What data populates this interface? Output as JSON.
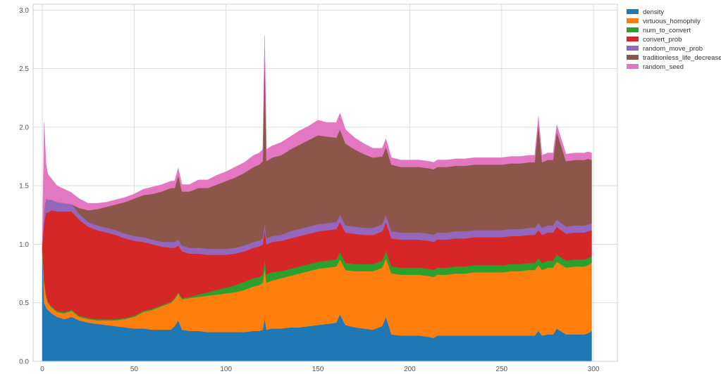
{
  "chart_data": {
    "type": "area",
    "stacked": true,
    "title": "",
    "xlabel": "",
    "ylabel": "",
    "xlim": [
      -5,
      313
    ],
    "ylim": [
      0,
      3.05
    ],
    "xticks": [
      0,
      50,
      100,
      150,
      200,
      250,
      300
    ],
    "yticks": [
      0.0,
      0.5,
      1.0,
      1.5,
      2.0,
      2.5,
      3.0
    ],
    "grid": true,
    "legend_position": "outside-top-right",
    "x": [
      0,
      1,
      2,
      3,
      5,
      8,
      12,
      16,
      20,
      25,
      30,
      35,
      40,
      45,
      50,
      55,
      60,
      65,
      70,
      72,
      74,
      76,
      80,
      85,
      90,
      95,
      100,
      105,
      110,
      115,
      118,
      120,
      121,
      122,
      125,
      130,
      135,
      140,
      145,
      150,
      155,
      160,
      162,
      165,
      170,
      175,
      180,
      185,
      187,
      190,
      195,
      200,
      205,
      210,
      213,
      215,
      220,
      225,
      230,
      235,
      240,
      245,
      250,
      255,
      260,
      265,
      268,
      270,
      272,
      275,
      278,
      280,
      285,
      290,
      295,
      297,
      299
    ],
    "series": [
      {
        "name": "density",
        "color": "#1f77b4",
        "values": [
          0.95,
          0.5,
          0.46,
          0.44,
          0.41,
          0.38,
          0.36,
          0.38,
          0.35,
          0.33,
          0.32,
          0.31,
          0.3,
          0.29,
          0.28,
          0.28,
          0.27,
          0.27,
          0.27,
          0.3,
          0.35,
          0.27,
          0.26,
          0.26,
          0.25,
          0.25,
          0.25,
          0.25,
          0.25,
          0.26,
          0.26,
          0.27,
          0.37,
          0.27,
          0.28,
          0.28,
          0.29,
          0.29,
          0.3,
          0.31,
          0.32,
          0.33,
          0.4,
          0.31,
          0.29,
          0.28,
          0.27,
          0.3,
          0.38,
          0.23,
          0.22,
          0.22,
          0.22,
          0.21,
          0.2,
          0.22,
          0.22,
          0.22,
          0.22,
          0.22,
          0.22,
          0.22,
          0.22,
          0.22,
          0.22,
          0.22,
          0.22,
          0.26,
          0.22,
          0.23,
          0.23,
          0.28,
          0.23,
          0.23,
          0.23,
          0.24,
          0.26
        ]
      },
      {
        "name": "virtuous_homophily",
        "color": "#ff7f0e",
        "values": [
          0.02,
          0.18,
          0.1,
          0.06,
          0.05,
          0.04,
          0.05,
          0.05,
          0.03,
          0.03,
          0.03,
          0.04,
          0.05,
          0.07,
          0.1,
          0.14,
          0.17,
          0.2,
          0.23,
          0.23,
          0.23,
          0.26,
          0.28,
          0.29,
          0.31,
          0.32,
          0.33,
          0.34,
          0.36,
          0.38,
          0.39,
          0.4,
          0.42,
          0.4,
          0.41,
          0.43,
          0.44,
          0.46,
          0.47,
          0.48,
          0.48,
          0.48,
          0.47,
          0.47,
          0.48,
          0.49,
          0.5,
          0.5,
          0.5,
          0.52,
          0.52,
          0.52,
          0.52,
          0.52,
          0.52,
          0.52,
          0.52,
          0.53,
          0.53,
          0.54,
          0.54,
          0.54,
          0.54,
          0.55,
          0.55,
          0.56,
          0.56,
          0.56,
          0.56,
          0.57,
          0.57,
          0.57,
          0.57,
          0.58,
          0.58,
          0.58,
          0.58
        ]
      },
      {
        "name": "num_to_convert",
        "color": "#2ca02c",
        "values": [
          0.005,
          0.01,
          0.01,
          0.01,
          0.01,
          0.01,
          0.01,
          0.01,
          0.01,
          0.01,
          0.01,
          0.01,
          0.01,
          0.01,
          0.01,
          0.01,
          0.01,
          0.01,
          0.01,
          0.01,
          0.01,
          0.01,
          0.01,
          0.02,
          0.03,
          0.04,
          0.05,
          0.06,
          0.07,
          0.07,
          0.07,
          0.07,
          0.08,
          0.07,
          0.07,
          0.06,
          0.06,
          0.06,
          0.06,
          0.06,
          0.06,
          0.06,
          0.06,
          0.06,
          0.06,
          0.06,
          0.06,
          0.06,
          0.06,
          0.06,
          0.06,
          0.06,
          0.06,
          0.06,
          0.06,
          0.06,
          0.06,
          0.06,
          0.06,
          0.06,
          0.06,
          0.06,
          0.06,
          0.06,
          0.06,
          0.06,
          0.06,
          0.06,
          0.06,
          0.06,
          0.06,
          0.06,
          0.06,
          0.06,
          0.06,
          0.06,
          0.06
        ]
      },
      {
        "name": "convert_prob",
        "color": "#d62728",
        "values": [
          0.02,
          0.5,
          0.7,
          0.76,
          0.82,
          0.85,
          0.86,
          0.84,
          0.82,
          0.78,
          0.76,
          0.74,
          0.72,
          0.68,
          0.64,
          0.59,
          0.55,
          0.5,
          0.46,
          0.43,
          0.4,
          0.4,
          0.37,
          0.35,
          0.32,
          0.3,
          0.28,
          0.27,
          0.26,
          0.26,
          0.26,
          0.26,
          0.26,
          0.26,
          0.26,
          0.26,
          0.26,
          0.26,
          0.26,
          0.26,
          0.26,
          0.26,
          0.26,
          0.26,
          0.26,
          0.25,
          0.25,
          0.25,
          0.25,
          0.24,
          0.24,
          0.24,
          0.24,
          0.24,
          0.24,
          0.24,
          0.24,
          0.24,
          0.24,
          0.24,
          0.24,
          0.24,
          0.24,
          0.24,
          0.24,
          0.24,
          0.24,
          0.24,
          0.24,
          0.24,
          0.24,
          0.24,
          0.23,
          0.23,
          0.23,
          0.23,
          0.22
        ]
      },
      {
        "name": "random_move_prob",
        "color": "#9467bd",
        "values": [
          0.02,
          0.1,
          0.12,
          0.11,
          0.09,
          0.08,
          0.07,
          0.06,
          0.05,
          0.04,
          0.04,
          0.04,
          0.04,
          0.04,
          0.04,
          0.04,
          0.04,
          0.04,
          0.05,
          0.05,
          0.05,
          0.05,
          0.05,
          0.05,
          0.05,
          0.05,
          0.05,
          0.05,
          0.05,
          0.05,
          0.05,
          0.05,
          0.05,
          0.05,
          0.05,
          0.05,
          0.06,
          0.06,
          0.06,
          0.06,
          0.06,
          0.06,
          0.06,
          0.06,
          0.06,
          0.06,
          0.06,
          0.06,
          0.06,
          0.06,
          0.06,
          0.06,
          0.06,
          0.06,
          0.06,
          0.06,
          0.06,
          0.06,
          0.06,
          0.06,
          0.06,
          0.06,
          0.06,
          0.06,
          0.06,
          0.06,
          0.06,
          0.06,
          0.06,
          0.06,
          0.06,
          0.06,
          0.06,
          0.06,
          0.06,
          0.06,
          0.06
        ]
      },
      {
        "name": "traditionless_life_decrease",
        "color": "#8c564b",
        "values": [
          0.0,
          0.0,
          0.0,
          0.0,
          0.0,
          0.0,
          0.0,
          0.0,
          0.05,
          0.1,
          0.14,
          0.18,
          0.22,
          0.27,
          0.32,
          0.36,
          0.39,
          0.43,
          0.46,
          0.46,
          0.55,
          0.46,
          0.48,
          0.51,
          0.52,
          0.55,
          0.58,
          0.6,
          0.62,
          0.64,
          0.65,
          0.66,
          1.48,
          0.66,
          0.67,
          0.68,
          0.7,
          0.72,
          0.74,
          0.76,
          0.74,
          0.72,
          0.73,
          0.7,
          0.66,
          0.63,
          0.6,
          0.58,
          0.58,
          0.57,
          0.56,
          0.56,
          0.56,
          0.56,
          0.56,
          0.56,
          0.56,
          0.56,
          0.56,
          0.56,
          0.56,
          0.56,
          0.56,
          0.56,
          0.56,
          0.56,
          0.56,
          0.85,
          0.56,
          0.56,
          0.56,
          0.75,
          0.56,
          0.56,
          0.56,
          0.56,
          0.54
        ]
      },
      {
        "name": "random_seed",
        "color": "#e377c2",
        "values": [
          0.0,
          0.75,
          0.3,
          0.22,
          0.18,
          0.14,
          0.12,
          0.1,
          0.08,
          0.06,
          0.05,
          0.04,
          0.04,
          0.04,
          0.04,
          0.05,
          0.06,
          0.06,
          0.06,
          0.06,
          0.06,
          0.06,
          0.06,
          0.07,
          0.07,
          0.08,
          0.08,
          0.09,
          0.09,
          0.1,
          0.1,
          0.1,
          0.12,
          0.1,
          0.1,
          0.11,
          0.11,
          0.12,
          0.12,
          0.13,
          0.12,
          0.13,
          0.14,
          0.12,
          0.1,
          0.09,
          0.08,
          0.07,
          0.07,
          0.06,
          0.06,
          0.06,
          0.06,
          0.06,
          0.06,
          0.06,
          0.06,
          0.06,
          0.06,
          0.06,
          0.06,
          0.06,
          0.06,
          0.06,
          0.06,
          0.06,
          0.06,
          0.06,
          0.06,
          0.06,
          0.06,
          0.06,
          0.06,
          0.06,
          0.06,
          0.06,
          0.06
        ]
      }
    ]
  }
}
